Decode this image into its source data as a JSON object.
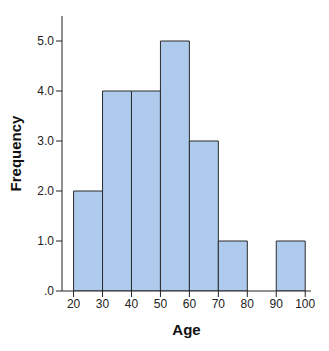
{
  "chart_data": {
    "type": "histogram",
    "x_label": "Age",
    "y_label": "Frequency",
    "bins": [
      20,
      30,
      40,
      50,
      60,
      70,
      80,
      90,
      100
    ],
    "values": [
      2,
      4,
      4,
      5,
      3,
      1,
      0,
      1
    ],
    "color": "#aecbee",
    "xlim": [
      16,
      102
    ],
    "xticks": [
      20,
      30,
      40,
      50,
      60,
      70,
      80,
      90,
      100
    ],
    "ylim": [
      0,
      5.5
    ],
    "yticks": [
      {
        "value": 0,
        "label": ".0"
      },
      {
        "value": 1,
        "label": "1.0"
      },
      {
        "value": 2,
        "label": "2.0"
      },
      {
        "value": 3,
        "label": "3.0"
      },
      {
        "value": 4,
        "label": "4.0"
      },
      {
        "value": 5,
        "label": "5.0"
      }
    ],
    "grid": false
  }
}
